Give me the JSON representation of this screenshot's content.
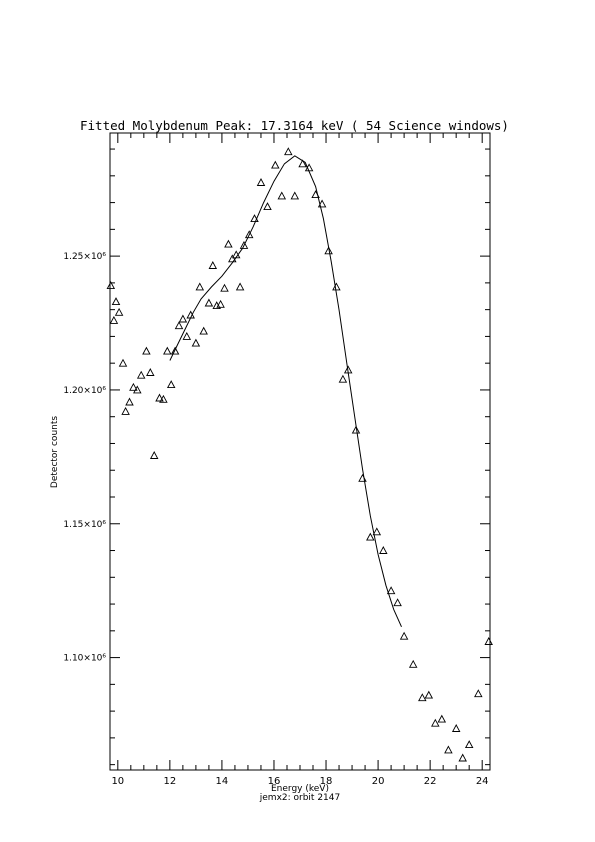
{
  "chart_data": {
    "type": "scatter",
    "title": "Fitted Molybdenum Peak:        17.3164 keV (      54 Science windows)",
    "xlabel": "Energy (keV)",
    "ylabel": "Detector counts",
    "subtitle": "jemx2: orbit 2147",
    "xlim": [
      9.7,
      24.3
    ],
    "ylim": [
      1058000,
      1296000
    ],
    "x_ticks": [
      10,
      12,
      14,
      16,
      18,
      20,
      22,
      24
    ],
    "x_tick_labels": [
      "10",
      "12",
      "14",
      "16",
      "18",
      "20",
      "22",
      "24"
    ],
    "y_ticks": [
      1100000,
      1150000,
      1200000,
      1250000
    ],
    "y_tick_labels": [
      "1.10×10⁶",
      "1.15×10⁶",
      "1.20×10⁶",
      "1.25×10⁶"
    ],
    "grid": false,
    "series": [
      {
        "marker": "triangle",
        "points": [
          [
            9.73,
            1239000
          ],
          [
            9.85,
            1226000
          ],
          [
            9.93,
            1233000
          ],
          [
            10.05,
            1229000
          ],
          [
            10.2,
            1210000
          ],
          [
            10.3,
            1192000
          ],
          [
            10.45,
            1195500
          ],
          [
            10.6,
            1201000
          ],
          [
            10.75,
            1200000
          ],
          [
            10.9,
            1205500
          ],
          [
            11.1,
            1214500
          ],
          [
            11.25,
            1206500
          ],
          [
            11.4,
            1175500
          ],
          [
            11.6,
            1197000
          ],
          [
            11.75,
            1196500
          ],
          [
            11.9,
            1214500
          ],
          [
            12.05,
            1202000
          ],
          [
            12.2,
            1214500
          ],
          [
            12.35,
            1224000
          ],
          [
            12.5,
            1226500
          ],
          [
            12.65,
            1220000
          ],
          [
            12.8,
            1228000
          ],
          [
            13.0,
            1217500
          ],
          [
            13.15,
            1238500
          ],
          [
            13.3,
            1222000
          ],
          [
            13.5,
            1232500
          ],
          [
            13.65,
            1246500
          ],
          [
            13.8,
            1231500
          ],
          [
            13.95,
            1232000
          ],
          [
            14.1,
            1238000
          ],
          [
            14.25,
            1254500
          ],
          [
            14.4,
            1249000
          ],
          [
            14.55,
            1250500
          ],
          [
            14.7,
            1238500
          ],
          [
            14.85,
            1254000
          ],
          [
            15.05,
            1258000
          ],
          [
            15.25,
            1264000
          ],
          [
            15.5,
            1277500
          ],
          [
            15.75,
            1268500
          ],
          [
            16.05,
            1284000
          ],
          [
            16.3,
            1272500
          ],
          [
            16.55,
            1289000
          ],
          [
            16.8,
            1272500
          ],
          [
            17.1,
            1284500
          ],
          [
            17.35,
            1283000
          ],
          [
            17.6,
            1273000
          ],
          [
            17.85,
            1269500
          ],
          [
            18.1,
            1252000
          ],
          [
            18.4,
            1238500
          ],
          [
            18.65,
            1204000
          ],
          [
            18.85,
            1207500
          ],
          [
            19.15,
            1185000
          ],
          [
            19.4,
            1167000
          ],
          [
            19.7,
            1145000
          ],
          [
            19.95,
            1147000
          ],
          [
            20.2,
            1140000
          ],
          [
            20.5,
            1125000
          ],
          [
            20.75,
            1120500
          ],
          [
            21.0,
            1108000
          ],
          [
            21.35,
            1097500
          ],
          [
            21.7,
            1085000
          ],
          [
            21.95,
            1086000
          ],
          [
            22.2,
            1075500
          ],
          [
            22.45,
            1077000
          ],
          [
            22.7,
            1065500
          ],
          [
            23.0,
            1073500
          ],
          [
            23.25,
            1062500
          ],
          [
            23.5,
            1067500
          ],
          [
            23.85,
            1086500
          ],
          [
            24.25,
            1106000
          ]
        ]
      },
      {
        "style": "line",
        "points": [
          [
            12.0,
            1211000
          ],
          [
            12.3,
            1217000
          ],
          [
            12.6,
            1223000
          ],
          [
            12.9,
            1229000
          ],
          [
            13.2,
            1234000
          ],
          [
            13.6,
            1238500
          ],
          [
            14.0,
            1242500
          ],
          [
            14.4,
            1247500
          ],
          [
            14.8,
            1253000
          ],
          [
            15.2,
            1261000
          ],
          [
            15.6,
            1270000
          ],
          [
            16.0,
            1278000
          ],
          [
            16.4,
            1284500
          ],
          [
            16.8,
            1287500
          ],
          [
            17.2,
            1285000
          ],
          [
            17.6,
            1276000
          ],
          [
            17.9,
            1264000
          ],
          [
            18.2,
            1248000
          ],
          [
            18.5,
            1230000
          ],
          [
            18.8,
            1210000
          ],
          [
            19.1,
            1190000
          ],
          [
            19.4,
            1170500
          ],
          [
            19.7,
            1153000
          ],
          [
            20.0,
            1138500
          ],
          [
            20.3,
            1127000
          ],
          [
            20.6,
            1118000
          ],
          [
            20.9,
            1111500
          ]
        ]
      }
    ]
  }
}
